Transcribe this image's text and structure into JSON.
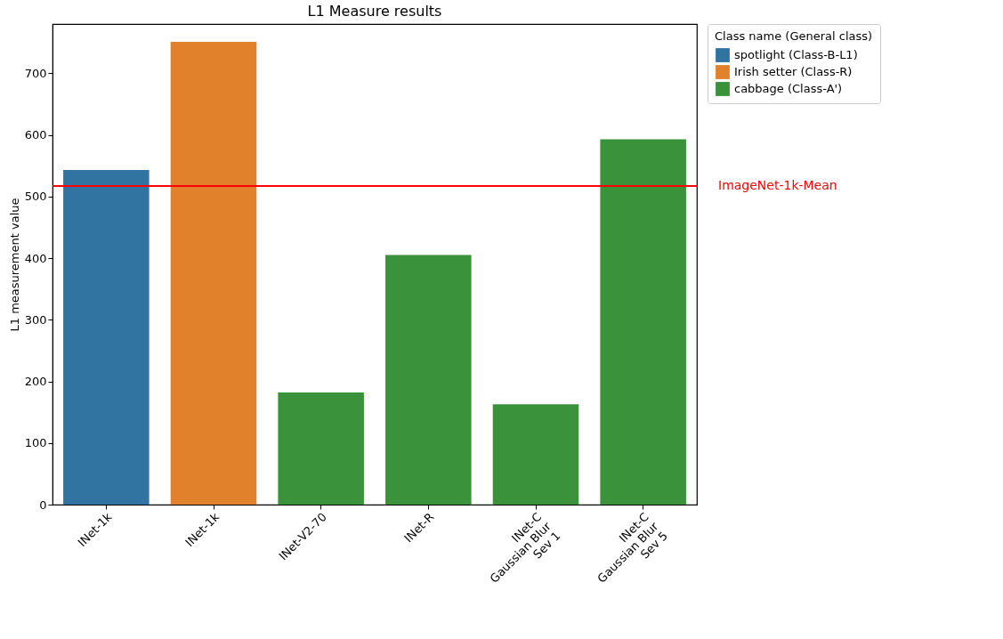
{
  "chart_data": {
    "type": "bar",
    "title": "L1 Measure results",
    "ylabel": "L1 measurement value",
    "legend_title": "Class name (General class)",
    "categories": [
      "INet-1k",
      "INet-1k",
      "INet-V2-70",
      "INet-R",
      "INet-C\nGaussian Blur\nSev 1",
      "INet-C\nGaussian Blur\nSev 5"
    ],
    "series": [
      {
        "name": "spotlight (Class-B-L1)",
        "color": "#3274a1",
        "values": [
          543,
          null,
          null,
          null,
          null,
          null
        ]
      },
      {
        "name": "Irish setter (Class-R)",
        "color": "#e1812c",
        "values": [
          null,
          751,
          null,
          null,
          null,
          null
        ]
      },
      {
        "name": "cabbage (Class-A')",
        "color": "#3a923a",
        "values": [
          null,
          null,
          182,
          405,
          163,
          593
        ]
      }
    ],
    "ylim": [
      0,
      780
    ],
    "yticks": [
      0,
      100,
      200,
      300,
      400,
      500,
      600,
      700
    ],
    "ref_lines": [
      {
        "axis": "y",
        "value": 517,
        "label": "ImageNet-1k-Mean",
        "color": "#ff0000"
      }
    ],
    "grid": false,
    "legend": "right"
  }
}
